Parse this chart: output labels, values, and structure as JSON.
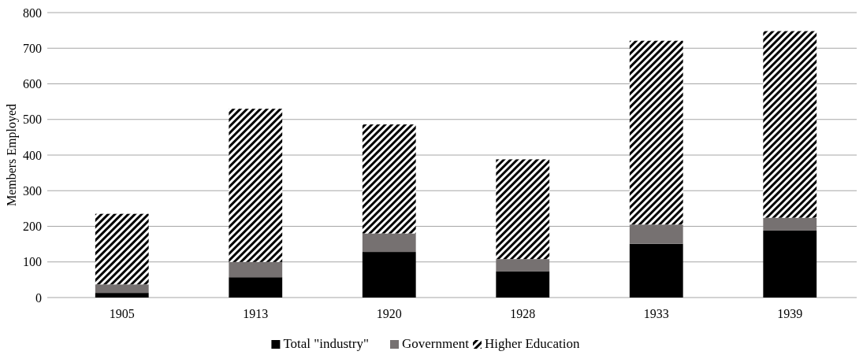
{
  "chart_data": {
    "type": "bar",
    "stacked": true,
    "ylabel": "Members Employed",
    "categories": [
      "1905",
      "1913",
      "1920",
      "1928",
      "1933",
      "1939"
    ],
    "series": [
      {
        "name": "Total \"industry\"",
        "color": "#000000",
        "values": [
          13,
          57,
          128,
          74,
          151,
          188
        ]
      },
      {
        "name": "Government",
        "color": "#767171",
        "values": [
          24,
          43,
          52,
          34,
          54,
          36
        ]
      },
      {
        "name": "Higher Education",
        "color": "#000000",
        "values": [
          198,
          430,
          306,
          280,
          516,
          524
        ]
      }
    ],
    "ylim": [
      0,
      800
    ],
    "yticks": [
      0,
      100,
      200,
      300,
      400,
      500,
      600,
      700,
      800
    ],
    "grid": "y",
    "legend": "bottom"
  }
}
